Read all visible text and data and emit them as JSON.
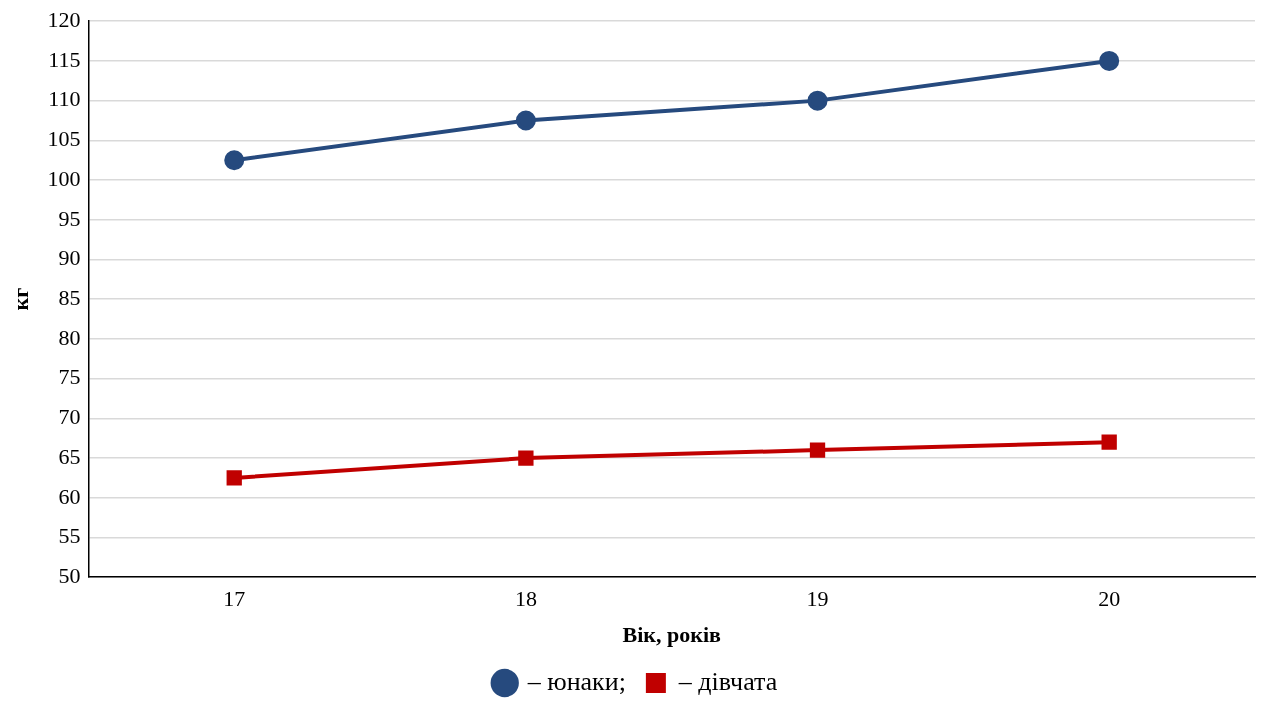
{
  "chart_data": {
    "type": "line",
    "xlabel": "Вік, років",
    "ylabel": "кг",
    "categories": [
      "17",
      "18",
      "19",
      "20"
    ],
    "series": [
      {
        "name": "– юнаки;",
        "color": "#264a7e",
        "marker": "circle",
        "values": [
          102.5,
          107.5,
          110,
          115
        ]
      },
      {
        "name": "– дівчата",
        "color": "#c00000",
        "marker": "square",
        "values": [
          62.5,
          65,
          66,
          67
        ]
      }
    ],
    "ylim": [
      50,
      120
    ],
    "yticks": [
      50,
      55,
      60,
      65,
      70,
      75,
      80,
      85,
      90,
      95,
      100,
      105,
      110,
      115,
      120
    ],
    "grid": "y",
    "legend": "bottom",
    "line_style": "solid"
  }
}
